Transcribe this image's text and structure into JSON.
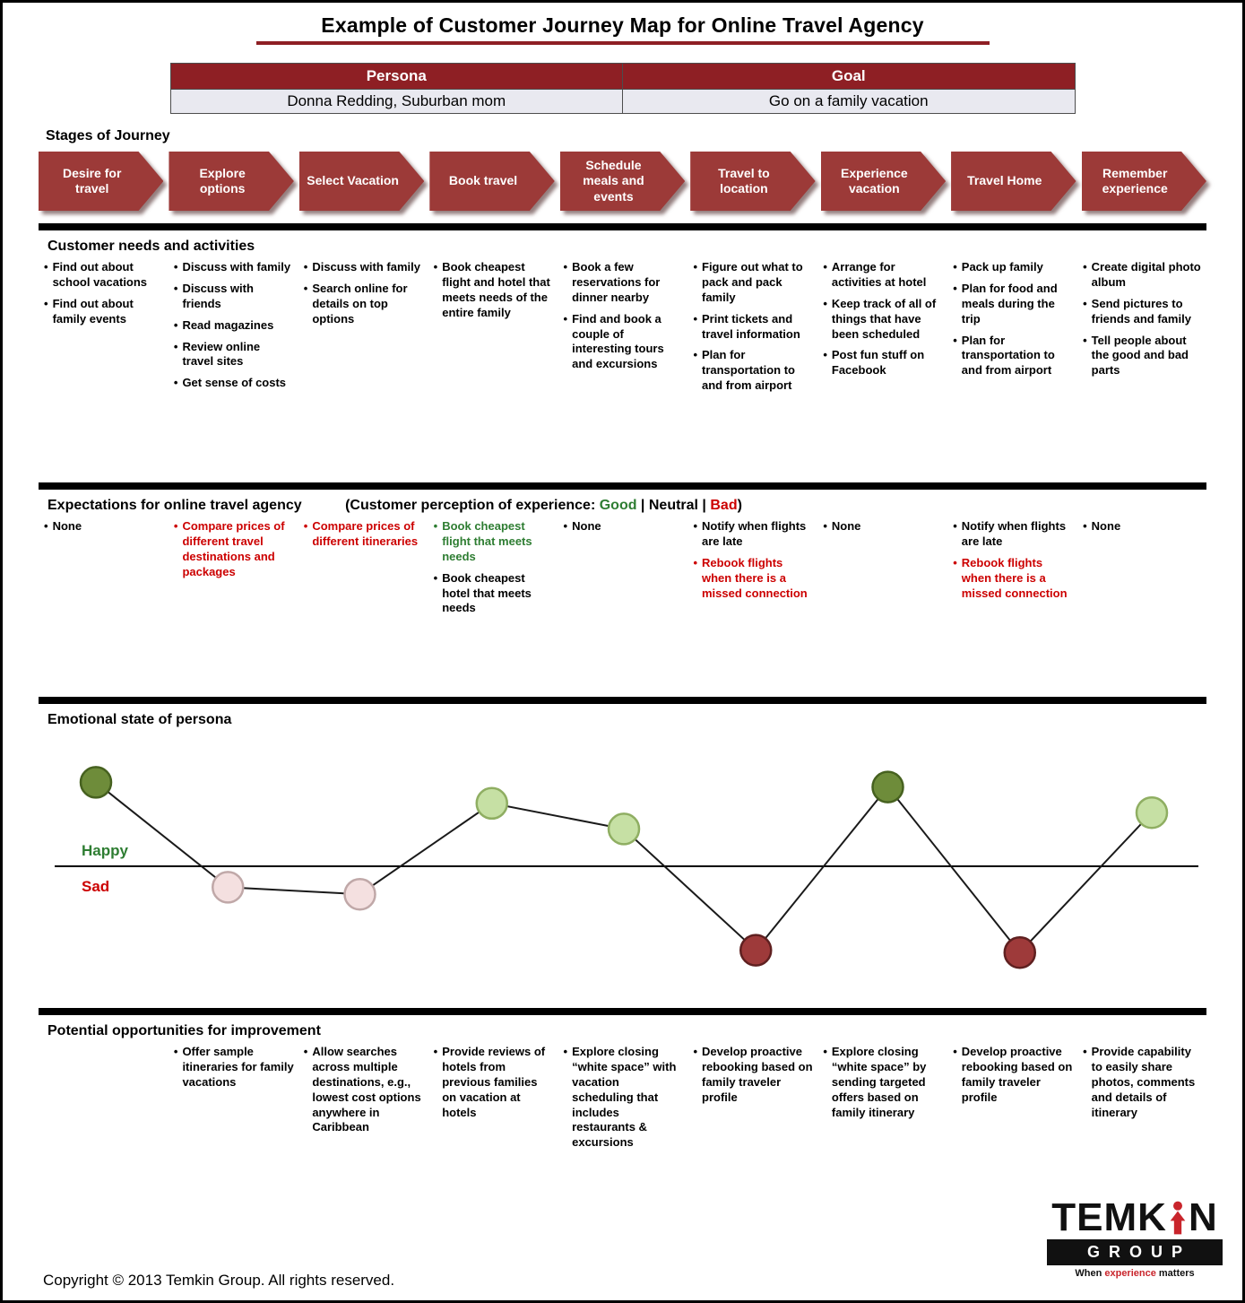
{
  "title": "Example of Customer Journey Map for Online Travel Agency",
  "persona_goal": {
    "persona_label": "Persona",
    "goal_label": "Goal",
    "persona_value": "Donna Redding, Suburban mom",
    "goal_value": "Go on a family vacation"
  },
  "stages_label": "Stages of Journey",
  "stages": [
    "Desire for travel",
    "Explore options",
    "Select Vacation",
    "Book travel",
    "Schedule meals and events",
    "Travel to location",
    "Experience vacation",
    "Travel Home",
    "Remember experience"
  ],
  "sections": {
    "needs": {
      "title": "Customer needs and activities",
      "columns": [
        [
          "Find out about school vacations",
          "Find out about family events"
        ],
        [
          "Discuss with family",
          "Discuss with friends",
          "Read magazines",
          "Review online travel sites",
          "Get sense of costs"
        ],
        [
          "Discuss with family",
          "Search online for details on top options"
        ],
        [
          "Book cheapest flight and hotel that meets needs of the entire family"
        ],
        [
          "Book a few reservations for dinner nearby",
          "Find and book a couple of interesting tours and excursions"
        ],
        [
          "Figure out what to pack and pack family",
          "Print tickets and travel information",
          "Plan for transportation to and from airport"
        ],
        [
          "Arrange for activities at hotel",
          "Keep track of all of things that have been scheduled",
          "Post fun stuff on Facebook"
        ],
        [
          "Pack up family",
          "Plan for food and meals during the trip",
          "Plan for transportation to and from airport"
        ],
        [
          "Create digital photo album",
          "Send pictures to friends and family",
          "Tell people about the good and bad parts"
        ]
      ]
    },
    "expectations": {
      "title": "Expectations for online travel agency",
      "note_prefix": "(Customer perception of experience: ",
      "note_good": "Good",
      "note_sep1": " | ",
      "note_neutral": "Neutral",
      "note_sep2": " | ",
      "note_bad": "Bad",
      "note_suffix": ")",
      "columns": [
        [
          {
            "text": "None",
            "color": "black"
          }
        ],
        [
          {
            "text": "Compare prices of different travel destinations and packages",
            "color": "red"
          }
        ],
        [
          {
            "text": "Compare prices of different itineraries",
            "color": "red"
          }
        ],
        [
          {
            "text": "Book cheapest flight that meets needs",
            "color": "green"
          },
          {
            "text": "Book cheapest hotel that meets needs",
            "color": "black"
          }
        ],
        [
          {
            "text": "None",
            "color": "black"
          }
        ],
        [
          {
            "text": "Notify when flights are late",
            "color": "black"
          },
          {
            "text": "Rebook flights when there is a missed connection",
            "color": "red"
          }
        ],
        [
          {
            "text": "None",
            "color": "black"
          }
        ],
        [
          {
            "text": "Notify when flights are late",
            "color": "black"
          },
          {
            "text": "Rebook flights when there is a missed connection",
            "color": "red"
          }
        ],
        [
          {
            "text": "None",
            "color": "black"
          }
        ]
      ]
    },
    "emotion": {
      "title": "Emotional state of persona"
    },
    "opportunities": {
      "title": "Potential opportunities for improvement",
      "columns": [
        [],
        [
          "Offer sample itineraries for family vacations"
        ],
        [
          "Allow searches across multiple destinations, e.g., lowest cost options anywhere in Caribbean"
        ],
        [
          "Provide reviews of hotels from previous families on vacation at hotels"
        ],
        [
          "Explore closing “white space” with vacation scheduling that includes restaurants & excursions"
        ],
        [
          "Develop proactive rebooking based on family traveler profile"
        ],
        [
          "Explore closing “white space” by sending targeted offers based on family itinerary"
        ],
        [
          "Develop proactive rebooking based on family traveler profile"
        ],
        [
          "Provide capability to easily share photos, comments and details of itinerary"
        ]
      ]
    }
  },
  "chart_data": {
    "type": "line",
    "title": "Emotional state of persona",
    "x_categories": [
      "Desire for travel",
      "Explore options",
      "Select Vacation",
      "Book travel",
      "Schedule meals and events",
      "Travel to location",
      "Experience vacation",
      "Travel Home",
      "Remember experience"
    ],
    "y_axis": {
      "happy_label": "Happy",
      "sad_label": "Sad",
      "happy_color": "#2e7d32",
      "sad_color": "#cc0000",
      "baseline": 0,
      "range": [
        -2,
        2
      ]
    },
    "points": [
      {
        "stage": "Desire for travel",
        "value": 1.8,
        "mood": "very-happy"
      },
      {
        "stage": "Explore options",
        "value": -0.45,
        "mood": "sad"
      },
      {
        "stage": "Select Vacation",
        "value": -0.6,
        "mood": "sad"
      },
      {
        "stage": "Book travel",
        "value": 1.35,
        "mood": "happy"
      },
      {
        "stage": "Schedule meals and events",
        "value": 0.8,
        "mood": "happy"
      },
      {
        "stage": "Travel to location",
        "value": -1.8,
        "mood": "very-sad"
      },
      {
        "stage": "Experience vacation",
        "value": 1.7,
        "mood": "very-happy"
      },
      {
        "stage": "Travel Home",
        "value": -1.85,
        "mood": "very-sad"
      },
      {
        "stage": "Remember experience",
        "value": 1.15,
        "mood": "happy"
      }
    ],
    "mood_colors": {
      "very-happy": {
        "fill": "#6e8c3a",
        "stroke": "#46611f"
      },
      "happy": {
        "fill": "#c6e0a4",
        "stroke": "#8fae62"
      },
      "sad": {
        "fill": "#f4e0e0",
        "stroke": "#c0a8a8"
      },
      "very-sad": {
        "fill": "#9e3a3a",
        "stroke": "#5f2020"
      }
    }
  },
  "logo": {
    "wordmark_left": "TEMK",
    "wordmark_right": "N",
    "group_text": "GROUP",
    "tagline_pre": "When ",
    "tagline_emphasis": "experience",
    "tagline_post": " matters"
  },
  "copyright": "Copyright © 2013 Temkin Group. All rights reserved.",
  "colors": {
    "maroon": "#8e1f24",
    "arrow_red": "#9c3a38",
    "good_green": "#2e7d32",
    "bad_red": "#cc0000"
  }
}
